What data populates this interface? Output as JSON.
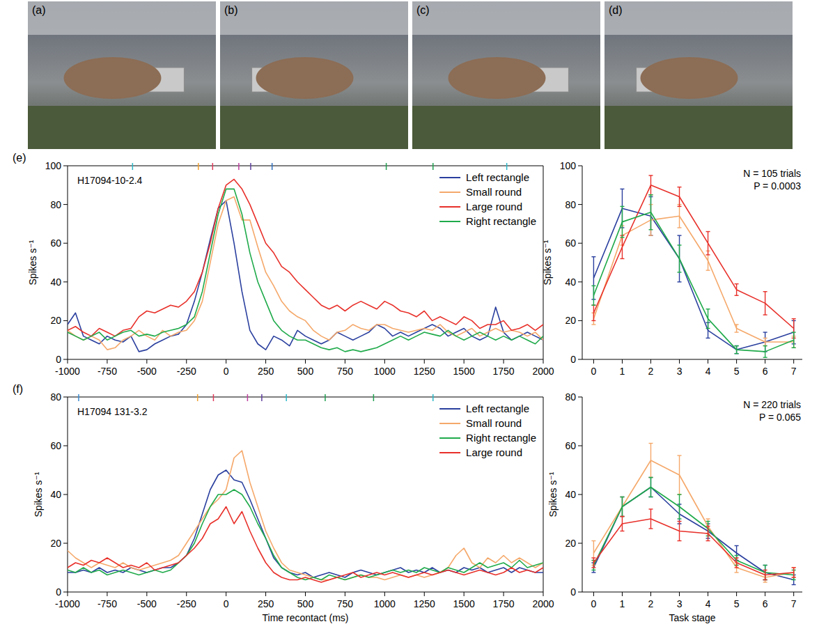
{
  "photo_panels": [
    "(a)",
    "(b)",
    "(c)",
    "(d)"
  ],
  "chart_data": [
    {
      "type": "line",
      "panel_label": "(e)",
      "annotations": [
        "H17094-10-2.4"
      ],
      "ylabel": "Spikes s⁻¹",
      "x": [
        -1000,
        -950,
        -900,
        -850,
        -800,
        -750,
        -700,
        -650,
        -600,
        -550,
        -500,
        -450,
        -400,
        -350,
        -300,
        -250,
        -200,
        -150,
        -100,
        -50,
        0,
        50,
        100,
        150,
        200,
        250,
        300,
        350,
        400,
        450,
        500,
        550,
        600,
        650,
        700,
        750,
        800,
        850,
        900,
        950,
        1000,
        1050,
        1100,
        1150,
        1200,
        1250,
        1300,
        1350,
        1400,
        1450,
        1500,
        1550,
        1600,
        1650,
        1700,
        1750,
        1800,
        1850,
        1900,
        1950,
        2000
      ],
      "xlim": [
        -1000,
        2000
      ],
      "xticks": [
        -1000,
        -750,
        -500,
        -250,
        0,
        250,
        500,
        750,
        1000,
        1250,
        1500,
        1750,
        2000
      ],
      "ylim": [
        0,
        100
      ],
      "yticks": [
        0,
        20,
        40,
        60,
        80,
        100
      ],
      "legend": "upper right",
      "event_markers": {
        "x": [
          -590,
          -175,
          -85,
          80,
          155,
          290,
          1010,
          1305,
          1770
        ],
        "colors": [
          "#2ab7c7",
          "#f0a030",
          "#e03a5a",
          "#c040a0",
          "#6040a0",
          "#3070c0",
          "#20a050",
          "#20a050",
          "#2ab7c7"
        ]
      },
      "series": [
        {
          "name": "Left rectangle",
          "color": "#2a3f9e",
          "values": [
            18,
            24,
            12,
            10,
            8,
            12,
            10,
            9,
            12,
            4,
            5,
            8,
            10,
            12,
            13,
            18,
            30,
            45,
            62,
            78,
            82,
            60,
            35,
            15,
            8,
            5,
            12,
            10,
            7,
            15,
            12,
            10,
            8,
            10,
            14,
            12,
            10,
            12,
            14,
            18,
            16,
            12,
            14,
            12,
            14,
            16,
            18,
            16,
            12,
            14,
            16,
            12,
            10,
            12,
            27,
            14,
            10,
            12,
            14,
            12,
            10
          ]
        },
        {
          "name": "Small round",
          "color": "#f5a86a",
          "values": [
            15,
            12,
            10,
            12,
            10,
            5,
            6,
            10,
            12,
            15,
            12,
            10,
            15,
            12,
            14,
            15,
            20,
            30,
            50,
            70,
            82,
            84,
            72,
            72,
            58,
            45,
            38,
            30,
            25,
            22,
            20,
            15,
            12,
            10,
            14,
            15,
            18,
            16,
            15,
            18,
            18,
            16,
            15,
            14,
            15,
            16,
            15,
            18,
            14,
            12,
            14,
            16,
            12,
            14,
            16,
            14,
            15,
            14,
            12,
            14,
            10
          ]
        },
        {
          "name": "Large round",
          "color": "#e8302a",
          "values": [
            15,
            17,
            14,
            12,
            16,
            14,
            12,
            15,
            16,
            22,
            25,
            24,
            26,
            28,
            27,
            30,
            35,
            45,
            60,
            78,
            90,
            93,
            88,
            80,
            70,
            60,
            55,
            48,
            45,
            40,
            36,
            32,
            28,
            26,
            28,
            25,
            28,
            30,
            28,
            26,
            30,
            28,
            25,
            24,
            22,
            25,
            20,
            22,
            20,
            18,
            22,
            20,
            16,
            18,
            18,
            20,
            15,
            16,
            18,
            15,
            18
          ]
        },
        {
          "name": "Right rectangle",
          "color": "#1faa4a",
          "values": [
            14,
            12,
            10,
            12,
            14,
            10,
            12,
            14,
            15,
            12,
            13,
            12,
            14,
            15,
            16,
            18,
            22,
            35,
            55,
            75,
            88,
            88,
            75,
            55,
            40,
            30,
            20,
            15,
            12,
            10,
            10,
            8,
            6,
            5,
            6,
            4,
            5,
            4,
            5,
            6,
            8,
            10,
            12,
            10,
            12,
            14,
            13,
            12,
            15,
            12,
            10,
            12,
            14,
            12,
            10,
            12,
            10,
            12,
            10,
            8,
            12
          ]
        }
      ]
    },
    {
      "type": "line",
      "annotations": [
        "N = 105 trials",
        "P = 0.0003"
      ],
      "ylabel": "Spikes s⁻¹",
      "x": [
        0,
        1,
        2,
        3,
        4,
        5,
        6,
        7
      ],
      "xlim": [
        -0.4,
        7.3
      ],
      "xticks": [
        0,
        1,
        2,
        3,
        4,
        5,
        6,
        7
      ],
      "ylim": [
        0,
        100
      ],
      "yticks": [
        0,
        20,
        40,
        60,
        80,
        100
      ],
      "series": [
        {
          "color": "#2a3f9e",
          "values": [
            42,
            78,
            74,
            52,
            15,
            5,
            9,
            14
          ],
          "errors": [
            11,
            10,
            10,
            12,
            4,
            2,
            5,
            6
          ]
        },
        {
          "color": "#f5a86a",
          "values": [
            21,
            64,
            72,
            74,
            51,
            16,
            9,
            9
          ],
          "errors": [
            3,
            5,
            8,
            6,
            5,
            2,
            2,
            3
          ]
        },
        {
          "color": "#e8302a",
          "values": [
            24,
            58,
            90,
            84,
            60,
            36,
            29,
            16
          ],
          "errors": [
            4,
            6,
            5,
            5,
            6,
            3,
            6,
            5
          ]
        },
        {
          "color": "#1faa4a",
          "values": [
            33,
            71,
            76,
            52,
            21,
            5,
            4,
            10
          ],
          "errors": [
            5,
            8,
            9,
            7,
            5,
            2,
            3,
            4
          ]
        }
      ]
    },
    {
      "type": "line",
      "panel_label": "(f)",
      "annotations": [
        "H17094 131-3.2"
      ],
      "ylabel": "Spikes s⁻¹",
      "xlabel": "Time recontact (ms)",
      "x": [
        -1000,
        -950,
        -900,
        -850,
        -800,
        -750,
        -700,
        -650,
        -600,
        -550,
        -500,
        -450,
        -400,
        -350,
        -300,
        -250,
        -200,
        -150,
        -100,
        -50,
        0,
        50,
        100,
        150,
        200,
        250,
        300,
        350,
        400,
        450,
        500,
        550,
        600,
        650,
        700,
        750,
        800,
        850,
        900,
        950,
        1000,
        1050,
        1100,
        1150,
        1200,
        1250,
        1300,
        1350,
        1400,
        1450,
        1500,
        1550,
        1600,
        1650,
        1700,
        1750,
        1800,
        1850,
        1900,
        1950,
        2000
      ],
      "xlim": [
        -1000,
        2000
      ],
      "xticks": [
        -1000,
        -750,
        -500,
        -250,
        0,
        250,
        500,
        750,
        1000,
        1250,
        1500,
        1750,
        2000
      ],
      "ylim": [
        0,
        80
      ],
      "yticks": [
        0,
        20,
        40,
        60,
        80
      ],
      "legend": "upper right",
      "event_markers": {
        "x": [
          -930,
          -180,
          -80,
          135,
          225,
          380,
          625,
          930,
          1305
        ],
        "colors": [
          "#3a8ad0",
          "#f0a030",
          "#e03a5a",
          "#c040a0",
          "#6040a0",
          "#2ab7c7",
          "#20a050",
          "#20a050",
          "#2ab7c7"
        ]
      },
      "series": [
        {
          "name": "Left rectangle",
          "color": "#2a3f9e",
          "values": [
            8,
            8,
            9,
            8,
            10,
            8,
            9,
            8,
            10,
            9,
            8,
            9,
            10,
            10,
            12,
            15,
            22,
            32,
            42,
            48,
            50,
            46,
            45,
            38,
            30,
            22,
            14,
            10,
            8,
            7,
            8,
            6,
            7,
            8,
            7,
            6,
            8,
            9,
            8,
            7,
            8,
            9,
            10,
            8,
            9,
            8,
            10,
            8,
            9,
            8,
            10,
            9,
            10,
            8,
            9,
            10,
            8,
            10,
            9,
            8,
            8
          ]
        },
        {
          "name": "Small round",
          "color": "#f5a86a",
          "values": [
            17,
            14,
            12,
            10,
            12,
            11,
            10,
            12,
            10,
            9,
            10,
            11,
            12,
            13,
            15,
            20,
            25,
            30,
            35,
            38,
            42,
            55,
            58,
            45,
            35,
            25,
            18,
            12,
            9,
            8,
            7,
            6,
            5,
            5,
            6,
            5,
            6,
            7,
            6,
            6,
            5,
            6,
            7,
            6,
            7,
            6,
            7,
            8,
            10,
            15,
            18,
            12,
            10,
            14,
            12,
            15,
            12,
            14,
            12,
            10,
            12
          ]
        },
        {
          "name": "Right rectangle",
          "color": "#1faa4a",
          "values": [
            9,
            8,
            10,
            8,
            9,
            7,
            8,
            9,
            8,
            7,
            8,
            9,
            8,
            9,
            12,
            15,
            20,
            28,
            35,
            40,
            40,
            42,
            40,
            35,
            28,
            22,
            15,
            10,
            8,
            6,
            5,
            6,
            5,
            7,
            6,
            5,
            6,
            7,
            6,
            7,
            8,
            9,
            8,
            9,
            8,
            10,
            9,
            8,
            10,
            9,
            8,
            10,
            12,
            10,
            11,
            12,
            10,
            13,
            10,
            11,
            12
          ]
        },
        {
          "name": "Large round",
          "color": "#e8302a",
          "values": [
            10,
            12,
            11,
            13,
            12,
            14,
            12,
            10,
            11,
            10,
            12,
            9,
            10,
            11,
            12,
            15,
            18,
            22,
            28,
            30,
            35,
            28,
            33,
            25,
            18,
            12,
            8,
            6,
            5,
            5,
            6,
            5,
            4,
            5,
            6,
            7,
            8,
            6,
            7,
            8,
            7,
            8,
            7,
            6,
            7,
            8,
            7,
            8,
            9,
            8,
            7,
            8,
            9,
            8,
            7,
            8,
            10,
            8,
            9,
            8,
            10
          ]
        }
      ]
    },
    {
      "type": "line",
      "annotations": [
        "N = 220 trials",
        "P = 0.065"
      ],
      "ylabel": "Spikes s⁻¹",
      "xlabel": "Task stage",
      "x": [
        0,
        1,
        2,
        3,
        4,
        5,
        6,
        7
      ],
      "xlim": [
        -0.4,
        7.3
      ],
      "xticks": [
        0,
        1,
        2,
        3,
        4,
        5,
        6,
        7
      ],
      "ylim": [
        0,
        80
      ],
      "yticks": [
        0,
        20,
        40,
        60,
        80
      ],
      "series": [
        {
          "color": "#2a3f9e",
          "values": [
            10,
            35,
            43,
            32,
            25,
            16,
            8,
            5
          ],
          "errors": [
            2,
            4,
            4,
            4,
            3,
            3,
            3,
            2
          ]
        },
        {
          "color": "#f5a86a",
          "values": [
            16,
            35,
            54,
            48,
            27,
            10,
            6,
            8
          ],
          "errors": [
            5,
            4,
            7,
            8,
            3,
            2,
            2,
            2
          ]
        },
        {
          "color": "#1faa4a",
          "values": [
            11,
            35,
            43,
            35,
            26,
            13,
            8,
            7
          ],
          "errors": [
            2,
            4,
            4,
            5,
            3,
            2,
            3,
            2
          ]
        },
        {
          "color": "#e8302a",
          "values": [
            12,
            28,
            30,
            25,
            24,
            12,
            7,
            8
          ],
          "errors": [
            2,
            3,
            4,
            4,
            3,
            2,
            2,
            2
          ]
        }
      ]
    }
  ]
}
